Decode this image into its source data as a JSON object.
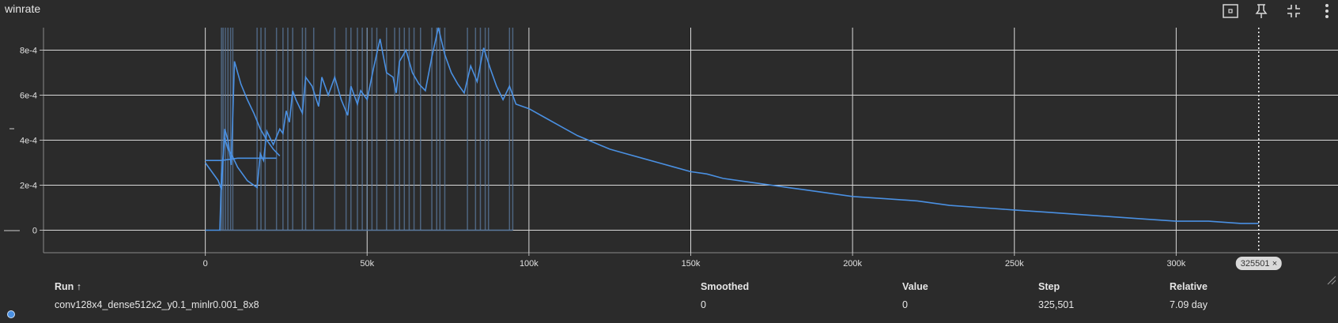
{
  "card": {
    "title": "winrate"
  },
  "toolbar": {
    "fit_icon": "fit-domain-icon",
    "pin_icon": "pin-icon",
    "collapse_icon": "collapse-icon",
    "more_icon": "more-vert-icon"
  },
  "colors": {
    "series": "#4a90e2",
    "background": "#2b2b2b",
    "grid": "#d9d9d9"
  },
  "chart_data": {
    "type": "line",
    "title": "winrate",
    "ylabel": "",
    "xlabel": "",
    "xlim": [
      -50000,
      350000
    ],
    "ylim": [
      -0.0001,
      0.0009
    ],
    "grid": true,
    "xticks": [
      0,
      50000,
      100000,
      150000,
      200000,
      250000,
      300000
    ],
    "xtick_labels": [
      "0",
      "50k",
      "100k",
      "150k",
      "200k",
      "250k",
      "300k"
    ],
    "yticks": [
      0,
      0.0002,
      0.0004,
      0.0006,
      0.0008
    ],
    "ytick_labels": [
      "0",
      "2e-4",
      "4e-4",
      "6e-4",
      "8e-4"
    ],
    "cursor": {
      "step": 325501,
      "label": "325501"
    },
    "series": [
      {
        "values": [
          [
            0,
            0.00031
          ],
          [
            5000,
            0.00031
          ],
          [
            10000,
            0.00032
          ],
          [
            15000,
            0.00032
          ],
          [
            22000,
            0.00032
          ],
          [
            0,
            0.0003
          ],
          [
            4000,
            0.00022
          ],
          [
            5000,
            0.00018
          ],
          [
            6000,
            0.00045
          ],
          [
            7000,
            0.0004
          ],
          [
            8000,
            0.00029
          ],
          [
            9000,
            0.00075
          ],
          [
            11000,
            0.00065
          ],
          [
            13000,
            0.00058
          ],
          [
            15000,
            0.00052
          ],
          [
            17000,
            0.00045
          ],
          [
            19000,
            0.0004
          ],
          [
            21000,
            0.00036
          ],
          [
            23000,
            0.00033
          ],
          [
            0,
            0.0
          ],
          [
            4500,
            0.0
          ],
          [
            5000,
            0.00025
          ],
          [
            6000,
            0.00041
          ],
          [
            7000,
            0.00036
          ],
          [
            8000,
            0.00034
          ],
          [
            10000,
            0.00028
          ],
          [
            13000,
            0.00022
          ],
          [
            16000,
            0.00019
          ],
          [
            17000,
            0.00034
          ],
          [
            18000,
            0.00031
          ],
          [
            19000,
            0.00044
          ],
          [
            21000,
            0.00038
          ],
          [
            23000,
            0.00045
          ],
          [
            24000,
            0.00043
          ],
          [
            25000,
            0.00053
          ],
          [
            26000,
            0.00048
          ],
          [
            27000,
            0.00062
          ],
          [
            28000,
            0.00058
          ],
          [
            30000,
            0.00052
          ],
          [
            31000,
            0.00068
          ],
          [
            33000,
            0.00064
          ],
          [
            35000,
            0.00055
          ],
          [
            36000,
            0.00068
          ],
          [
            38000,
            0.0006
          ],
          [
            40000,
            0.00068
          ],
          [
            42000,
            0.00058
          ],
          [
            44000,
            0.00051
          ],
          [
            45000,
            0.00064
          ],
          [
            47000,
            0.00056
          ],
          [
            48000,
            0.00062
          ],
          [
            50000,
            0.00058
          ],
          [
            51000,
            0.00065
          ],
          [
            52000,
            0.00072
          ],
          [
            54000,
            0.00085
          ],
          [
            56000,
            0.0007
          ],
          [
            58000,
            0.00068
          ],
          [
            59000,
            0.00061
          ],
          [
            60000,
            0.00075
          ],
          [
            62000,
            0.0008
          ],
          [
            64000,
            0.0007
          ],
          [
            66000,
            0.00065
          ],
          [
            68000,
            0.00062
          ],
          [
            70000,
            0.00077
          ],
          [
            72000,
            0.0009
          ],
          [
            74000,
            0.00078
          ],
          [
            76000,
            0.0007
          ],
          [
            78000,
            0.00065
          ],
          [
            80000,
            0.00061
          ],
          [
            82000,
            0.00073
          ],
          [
            84000,
            0.00066
          ],
          [
            86000,
            0.00081
          ],
          [
            88000,
            0.00072
          ],
          [
            90000,
            0.00064
          ],
          [
            92000,
            0.00058
          ],
          [
            94000,
            0.00064
          ],
          [
            96000,
            0.00056
          ],
          [
            100000,
            0.00054
          ],
          [
            105000,
            0.0005
          ],
          [
            110000,
            0.00046
          ],
          [
            115000,
            0.00042
          ],
          [
            120000,
            0.00039
          ],
          [
            125000,
            0.00036
          ],
          [
            130000,
            0.00034
          ],
          [
            135000,
            0.00032
          ],
          [
            140000,
            0.0003
          ],
          [
            145000,
            0.00028
          ],
          [
            150000,
            0.00026
          ],
          [
            155000,
            0.00025
          ],
          [
            160000,
            0.00023
          ],
          [
            165000,
            0.00022
          ],
          [
            170000,
            0.00021
          ],
          [
            175000,
            0.0002
          ],
          [
            180000,
            0.00019
          ],
          [
            185000,
            0.00018
          ],
          [
            190000,
            0.00017
          ],
          [
            195000,
            0.00016
          ],
          [
            200000,
            0.00015
          ],
          [
            210000,
            0.00014
          ],
          [
            220000,
            0.00013
          ],
          [
            230000,
            0.00011
          ],
          [
            240000,
            0.0001
          ],
          [
            250000,
            9e-05
          ],
          [
            260000,
            8e-05
          ],
          [
            270000,
            7e-05
          ],
          [
            280000,
            6e-05
          ],
          [
            290000,
            5e-05
          ],
          [
            300000,
            4e-05
          ],
          [
            310000,
            4e-05
          ],
          [
            320000,
            3e-05
          ],
          [
            325501,
            3e-05
          ]
        ]
      }
    ]
  },
  "table": {
    "headers": {
      "run": "Run ↑",
      "smoothed": "Smoothed",
      "value": "Value",
      "step": "Step",
      "relative": "Relative"
    },
    "rows": [
      {
        "run": "conv128x4_dense512x2_y0.1_minlr0.001_8x8",
        "smoothed": "0",
        "value": "0",
        "step": "325,501",
        "relative": "7.09 day"
      }
    ]
  }
}
